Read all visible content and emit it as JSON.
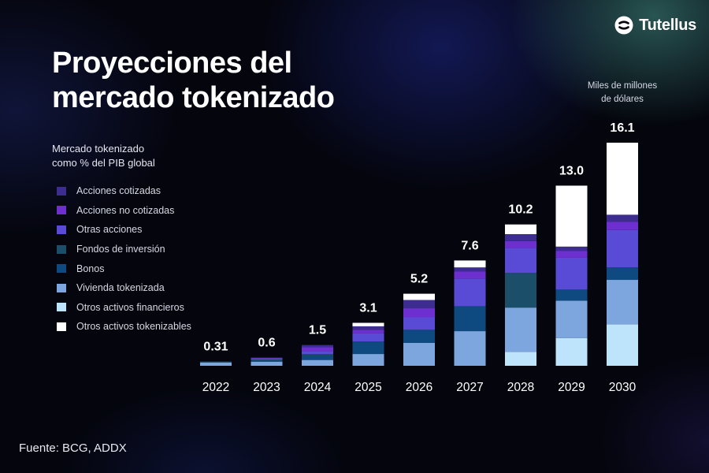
{
  "brand": {
    "name": "Tutellus",
    "icon": "tutellus-logo-icon"
  },
  "source": "Fuente: BCG, ADDX",
  "chart_data": {
    "type": "bar",
    "stacked": true,
    "title": [
      "Proyecciones del",
      "mercado tokenizado"
    ],
    "unit_label": [
      "Miles de millones",
      "de dólares"
    ],
    "legend_title": [
      "Mercado tokenizado",
      "como % del PIB global"
    ],
    "legend_position": "left",
    "categories": [
      "2022",
      "2023",
      "2024",
      "2025",
      "2026",
      "2027",
      "2028",
      "2029",
      "2030"
    ],
    "totals": [
      0.31,
      0.6,
      1.5,
      3.1,
      5.2,
      7.6,
      10.2,
      13.0,
      16.1
    ],
    "total_labels": [
      "0.31",
      "0.6",
      "1.5",
      "3.1",
      "5.2",
      "7.6",
      "10.2",
      "13.0",
      "16.1"
    ],
    "ylim": [
      0,
      16.1
    ],
    "series": [
      {
        "name": "Otros activos financieros",
        "color": "#bde4fb",
        "values": [
          0.0,
          0.0,
          0.0,
          0.0,
          0.0,
          0.0,
          1.0,
          2.0,
          3.0
        ]
      },
      {
        "name": "Vivienda tokenizada",
        "color": "#7da5de",
        "values": [
          0.24,
          0.3,
          0.42,
          0.85,
          1.65,
          2.5,
          3.2,
          2.7,
          3.2
        ]
      },
      {
        "name": "Bonos",
        "color": "#0e4a80",
        "values": [
          0.0,
          0.07,
          0.3,
          0.9,
          0.95,
          1.8,
          0.0,
          0.8,
          0.9
        ]
      },
      {
        "name": "Fondos de inversión",
        "color": "#1b4e68",
        "values": [
          0.07,
          0.08,
          0.12,
          0.0,
          0.0,
          0.0,
          2.5,
          0.0,
          0.0
        ]
      },
      {
        "name": "Otras acciones",
        "color": "#5a4bd6",
        "values": [
          0.0,
          0.08,
          0.22,
          0.6,
          0.9,
          2.0,
          1.8,
          2.3,
          2.7
        ]
      },
      {
        "name": "Acciones no cotizadas",
        "color": "#6e2fd0",
        "values": [
          0.0,
          0.05,
          0.28,
          0.25,
          0.65,
          0.5,
          0.5,
          0.5,
          0.6
        ]
      },
      {
        "name": "Acciones cotizadas",
        "color": "#3d2d8f",
        "values": [
          0.0,
          0.02,
          0.16,
          0.25,
          0.6,
          0.3,
          0.5,
          0.3,
          0.5
        ]
      },
      {
        "name": "Otros activos tokenizables",
        "color": "#ffffff",
        "values": [
          0.0,
          0.0,
          0.0,
          0.25,
          0.45,
          0.5,
          0.7,
          4.4,
          5.2
        ]
      }
    ],
    "legend_order": [
      "Acciones cotizadas",
      "Acciones no cotizadas",
      "Otras acciones",
      "Fondos de inversión",
      "Bonos",
      "Vivienda tokenizada",
      "Otros activos financieros",
      "Otros activos tokenizables"
    ]
  }
}
